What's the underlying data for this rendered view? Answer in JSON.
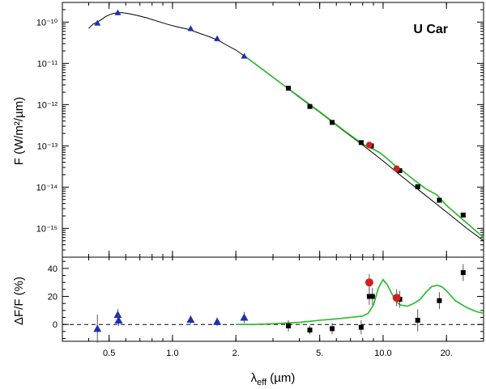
{
  "chart_data": [
    {
      "type": "scatter",
      "panel": "sed",
      "annotation": "U Car",
      "ylabel": "F (W/m²/µm)",
      "x_scale": "log",
      "y_scale": "log",
      "xlim": [
        0.3,
        30
      ],
      "ylim": [
        2e-16,
        3e-10
      ],
      "y_ticks": [
        {
          "value": 1e-10,
          "label": "10⁻¹⁰"
        },
        {
          "value": 1e-11,
          "label": "10⁻¹¹"
        },
        {
          "value": 1e-12,
          "label": "10⁻¹²"
        },
        {
          "value": 1e-13,
          "label": "10⁻¹³"
        },
        {
          "value": 1e-14,
          "label": "10⁻¹⁴"
        },
        {
          "value": 1e-15,
          "label": "10⁻¹⁵"
        }
      ],
      "series": [
        {
          "kind": "line",
          "color": "#000000",
          "x": [
            0.4,
            0.42,
            0.44,
            0.46,
            0.48,
            0.5,
            0.52,
            0.55,
            0.58,
            0.62,
            0.68,
            0.75,
            0.85,
            0.95,
            1.05,
            1.2,
            1.35,
            1.5,
            1.65,
            1.8,
            2.0,
            2.2,
            2.6,
            3.2,
            4.0,
            5.0,
            6.5,
            8.0,
            10.0,
            12.0,
            15.0,
            20.0,
            25.0,
            30.0
          ],
          "y": [
            7e-11,
            9e-11,
            1e-10,
            1.15e-10,
            1.35e-10,
            1.5e-10,
            1.6e-10,
            1.7e-10,
            1.68e-10,
            1.6e-10,
            1.45e-10,
            1.28e-10,
            1.05e-10,
            8.8e-11,
            7.7e-11,
            6.6e-11,
            5.3e-11,
            4.4e-11,
            3.6e-11,
            2.8e-11,
            2.1e-11,
            1.5e-11,
            8e-12,
            3.6e-12,
            1.5e-12,
            6.5e-13,
            2.3e-13,
            1.05e-13,
            4.3e-14,
            2e-14,
            8e-15,
            2.5e-15,
            1e-15,
            5e-16
          ]
        },
        {
          "kind": "line",
          "color": "#22bb22",
          "x": [
            2.2,
            2.6,
            3.2,
            4.0,
            5.0,
            6.5,
            8.0,
            8.5,
            9.0,
            9.7,
            10.5,
            11.5,
            12.5,
            14.0,
            16.0,
            18.0,
            20.0,
            24.0,
            30.0
          ],
          "y": [
            1.5e-11,
            8e-12,
            3.6e-12,
            1.55e-12,
            6.7e-13,
            2.4e-13,
            1.1e-13,
            9.5e-14,
            8.3e-14,
            6.7e-14,
            4.8e-14,
            3.2e-14,
            2.4e-14,
            1.5e-14,
            9e-15,
            6.5e-15,
            3.6e-15,
            1.6e-15,
            6e-16
          ]
        },
        {
          "kind": "marker",
          "shape": "triangle",
          "color": "#1f2fb0",
          "x": [
            0.44,
            0.55,
            1.22,
            1.63,
            2.19
          ],
          "y": [
            9.5e-11,
            1.7e-10,
            7e-11,
            4e-11,
            1.5e-11
          ]
        },
        {
          "kind": "marker",
          "shape": "square",
          "color": "#000000",
          "x": [
            3.55,
            4.49,
            5.73,
            7.87,
            8.8,
            12.0,
            14.6,
            18.5,
            24.0
          ],
          "y": [
            2.5e-12,
            9e-13,
            3.7e-13,
            1.2e-13,
            1e-13,
            2.5e-14,
            1.02e-14,
            4.8e-15,
            2.1e-15
          ]
        },
        {
          "kind": "marker",
          "shape": "circle",
          "color": "#cc2222",
          "x": [
            8.6,
            11.6
          ],
          "y": [
            1.05e-13,
            2.8e-14
          ]
        }
      ]
    },
    {
      "type": "scatter",
      "panel": "residual",
      "ylabel": "ΔF/F (%)",
      "xlabel": "λeff (µm)",
      "x_scale": "log",
      "xlim": [
        0.3,
        30
      ],
      "ylim": [
        -12,
        48
      ],
      "x_ticks": [
        {
          "value": 0.5,
          "label": "0.5"
        },
        {
          "value": 1.0,
          "label": "1.0"
        },
        {
          "value": 2.0,
          "label": "2."
        },
        {
          "value": 5.0,
          "label": "5."
        },
        {
          "value": 10.0,
          "label": "10.0"
        },
        {
          "value": 20.0,
          "label": "20."
        }
      ],
      "y_ticks": [
        {
          "value": 0,
          "label": "0"
        },
        {
          "value": 20,
          "label": "20"
        },
        {
          "value": 40,
          "label": "40"
        }
      ],
      "zero_line": 0,
      "series": [
        {
          "kind": "line",
          "color": "#22bb22",
          "x": [
            2.0,
            2.5,
            3.0,
            4.0,
            5.0,
            6.0,
            7.0,
            8.0,
            8.5,
            9.0,
            9.5,
            10.0,
            10.5,
            11.0,
            11.5,
            12.0,
            13.0,
            14.0,
            15.0,
            16.0,
            17.0,
            18.0,
            19.0,
            20.0,
            22.0,
            25.0,
            28.0,
            30.0
          ],
          "y": [
            0,
            0,
            0.5,
            1.5,
            3,
            4,
            5,
            6,
            8,
            14,
            26,
            32,
            28,
            22,
            17,
            14,
            13,
            15,
            18,
            23,
            27,
            28,
            27,
            24,
            17,
            12,
            9,
            8
          ]
        },
        {
          "kind": "marker",
          "shape": "triangle",
          "color": "#1f2fb0",
          "x": [
            0.44,
            0.55,
            0.555,
            1.22,
            1.63,
            2.19
          ],
          "y": [
            -3,
            7,
            3,
            3.5,
            2,
            5
          ],
          "err": [
            10,
            4,
            4,
            3,
            3,
            4
          ]
        },
        {
          "kind": "marker",
          "shape": "square",
          "color": "#000000",
          "x": [
            3.55,
            4.49,
            5.73,
            7.87,
            8.6,
            8.9,
            12.0,
            14.6,
            18.5,
            24.0
          ],
          "y": [
            -1,
            -4,
            -3,
            -2,
            20,
            20,
            18,
            3,
            17,
            37
          ],
          "err": [
            4,
            3,
            4,
            5,
            6,
            6,
            6,
            8,
            6,
            6
          ]
        },
        {
          "kind": "marker",
          "shape": "circle",
          "color": "#cc2222",
          "x": [
            8.6,
            11.6
          ],
          "y": [
            30,
            19
          ],
          "err": [
            6,
            6
          ]
        }
      ]
    }
  ]
}
